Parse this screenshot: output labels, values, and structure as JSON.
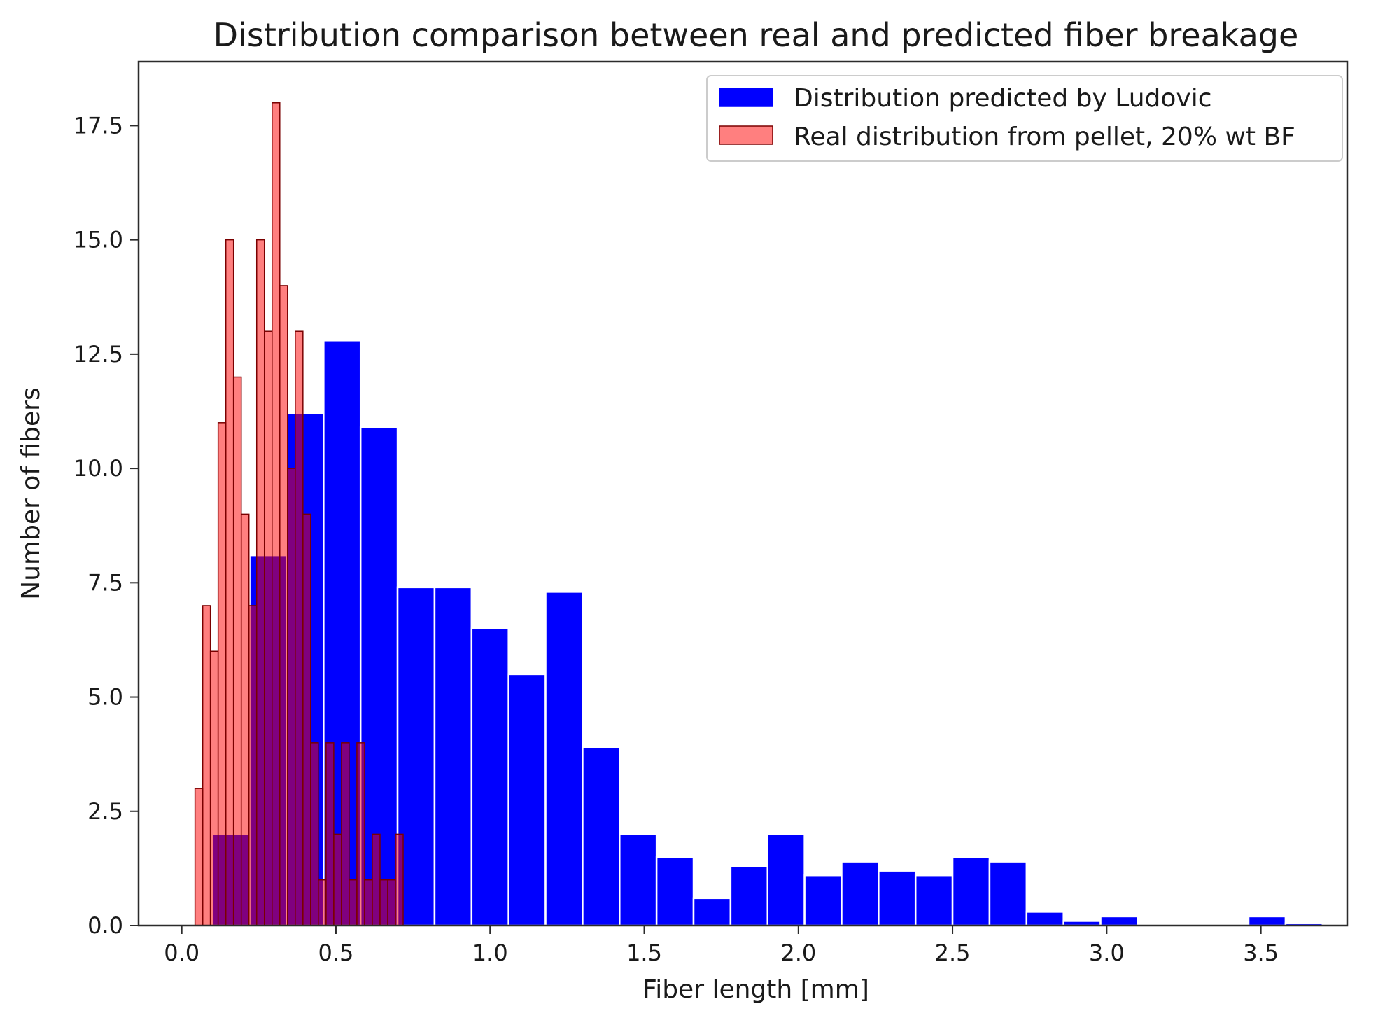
{
  "chart_data": {
    "type": "bar",
    "title": "Distribution comparison between real and predicted fiber breakage",
    "xlabel": "Fiber length [mm]",
    "ylabel": "Number of fibers",
    "xlim": [
      -0.14,
      3.78
    ],
    "ylim": [
      0,
      18.9
    ],
    "xticks": [
      0.0,
      0.5,
      1.0,
      1.5,
      2.0,
      2.5,
      3.0,
      3.5
    ],
    "xtick_labels": [
      "0.0",
      "0.5",
      "1.0",
      "1.5",
      "2.0",
      "2.5",
      "3.0",
      "3.5"
    ],
    "yticks": [
      0.0,
      2.5,
      5.0,
      7.5,
      10.0,
      12.5,
      15.0,
      17.5
    ],
    "ytick_labels": [
      "0.0",
      "2.5",
      "5.0",
      "7.5",
      "10.0",
      "12.5",
      "15.0",
      "17.5"
    ],
    "grid": false,
    "legend_position": "top-right",
    "series": [
      {
        "name": "Distribution predicted by Ludovic",
        "color": "#0000ff",
        "edgecolor": "#ffffff",
        "opacity": 1.0,
        "bin_width": 0.12,
        "bin_starts": [
          0.1,
          0.22,
          0.34,
          0.46,
          0.58,
          0.7,
          0.82,
          0.94,
          1.06,
          1.18,
          1.3,
          1.42,
          1.54,
          1.66,
          1.78,
          1.9,
          2.02,
          2.14,
          2.26,
          2.38,
          2.5,
          2.62,
          2.74,
          2.86,
          2.98,
          3.1,
          3.22,
          3.34,
          3.46,
          3.58
        ],
        "values": [
          2.0,
          8.1,
          11.2,
          12.8,
          10.9,
          7.4,
          7.4,
          6.5,
          5.5,
          7.3,
          3.9,
          2.0,
          1.5,
          0.6,
          1.3,
          2.0,
          1.1,
          1.4,
          1.2,
          1.1,
          1.5,
          1.4,
          0.3,
          0.1,
          0.2,
          0.0,
          0.0,
          0.0,
          0.2,
          0.05
        ]
      },
      {
        "name": "Real distribution from pellet, 20% wt BF",
        "color": "#ff0000",
        "edgecolor": "#7a0000",
        "opacity": 0.5,
        "bin_width": 0.025,
        "bin_starts": [
          0.043,
          0.068,
          0.093,
          0.118,
          0.143,
          0.168,
          0.193,
          0.218,
          0.243,
          0.268,
          0.293,
          0.318,
          0.343,
          0.368,
          0.393,
          0.418,
          0.443,
          0.468,
          0.493,
          0.518,
          0.543,
          0.568,
          0.593,
          0.618,
          0.643,
          0.668,
          0.693
        ],
        "values": [
          3,
          7,
          6,
          11,
          15,
          12,
          9,
          7,
          15,
          13,
          18,
          14,
          10,
          13,
          9,
          4,
          1,
          4,
          2,
          4,
          1,
          4,
          1,
          2,
          1,
          1,
          2
        ]
      }
    ]
  }
}
